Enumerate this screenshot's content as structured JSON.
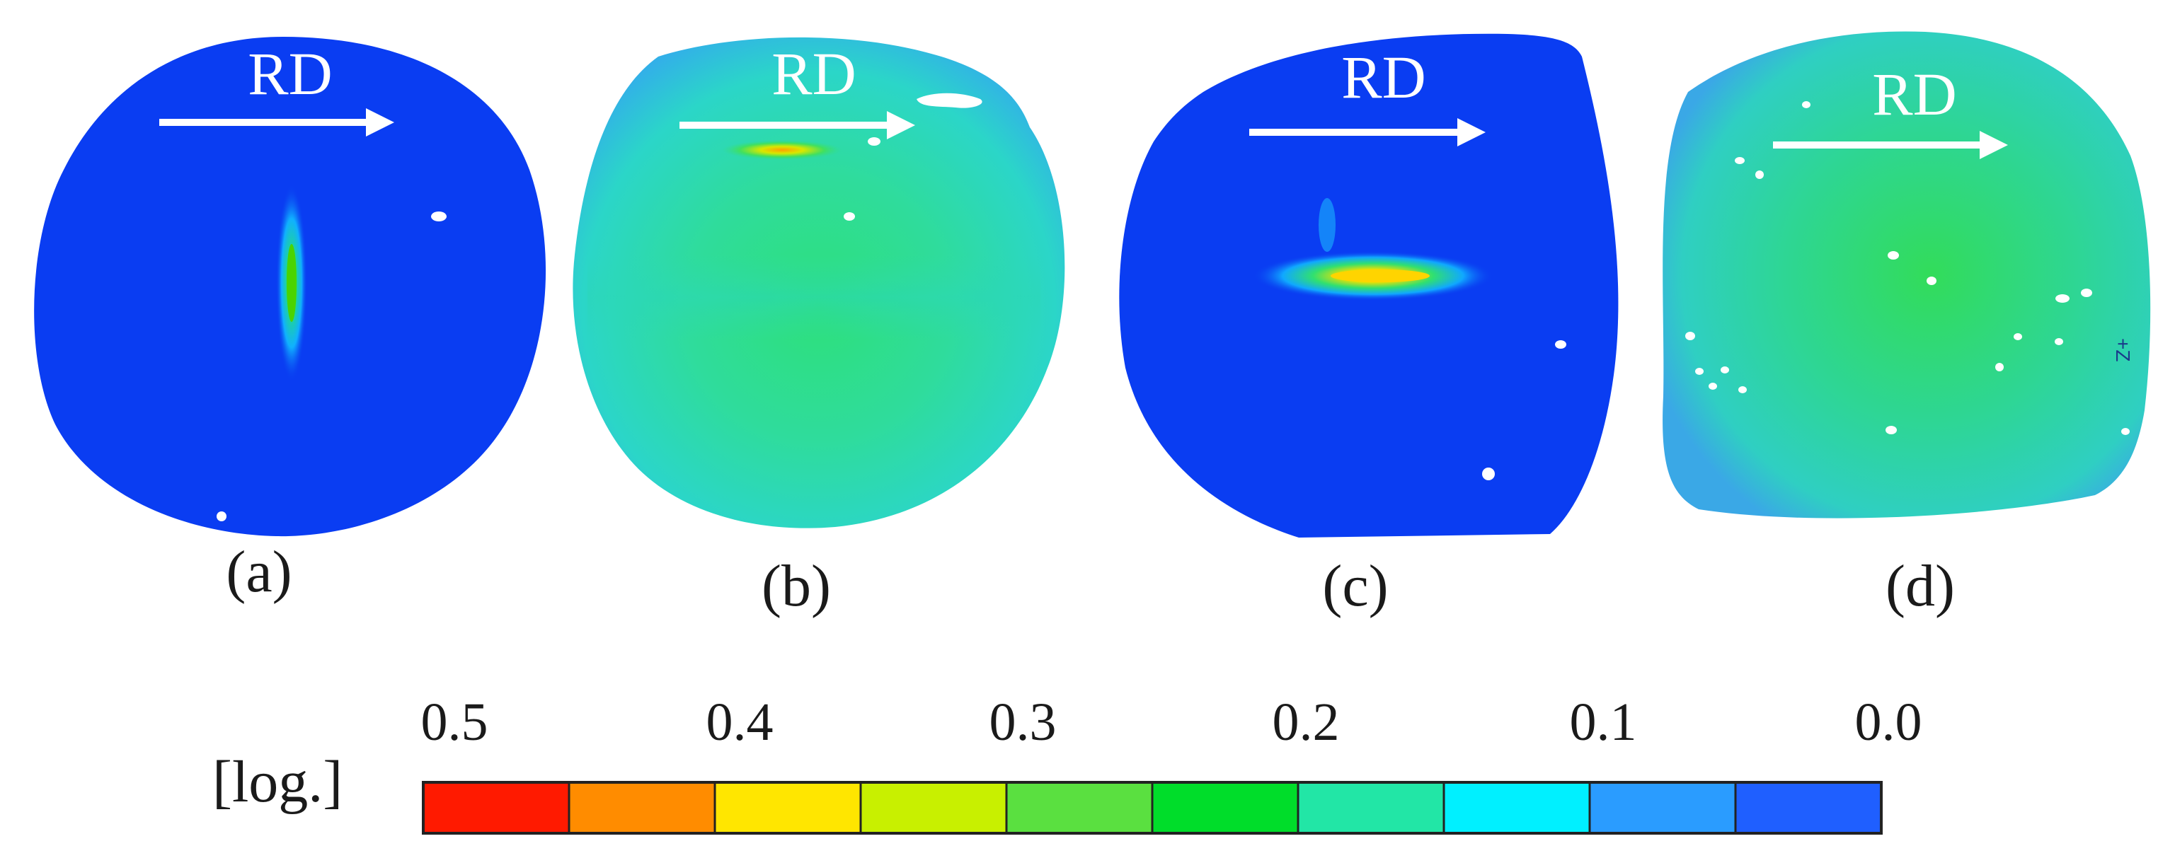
{
  "figure": {
    "direction_label": "RD",
    "panels": [
      {
        "id": "a",
        "label": "(a)"
      },
      {
        "id": "b",
        "label": "(b)"
      },
      {
        "id": "c",
        "label": "(c)"
      },
      {
        "id": "d",
        "label": "(d)",
        "axis_marker": "+Z"
      }
    ]
  },
  "colorbar": {
    "unit_label": "[log.]",
    "tick_labels": [
      "0.5",
      "0.4",
      "0.3",
      "0.2",
      "0.1",
      "0.0"
    ],
    "segment_colors": [
      "#ff1a00",
      "#ff8c00",
      "#ffe600",
      "#c8f000",
      "#5ae040",
      "#00dd2a",
      "#22e6a6",
      "#00f0ff",
      "#2a9cff",
      "#1f5fff"
    ]
  }
}
